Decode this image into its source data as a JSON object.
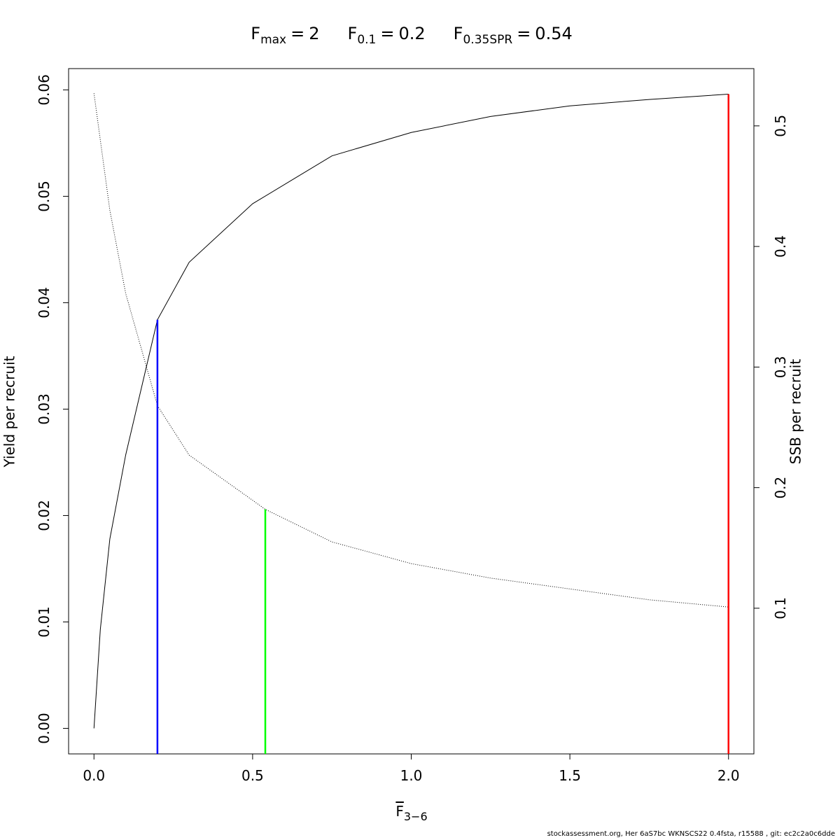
{
  "chart_data": {
    "type": "line",
    "title": [
      {
        "symbol": "F",
        "subscript": "max",
        "relation": "=",
        "value": 2
      },
      {
        "symbol": "F",
        "subscript": "0.1",
        "relation": "=",
        "value": 0.2
      },
      {
        "symbol": "F",
        "subscript": "0.35SPR",
        "relation": "=",
        "value": 0.54
      }
    ],
    "x_label": {
      "symbol": "F",
      "subscript": "3−6"
    },
    "y_label": "Yield per recruit",
    "y2_label": "SSB per recruit",
    "xlim": [
      -0.08,
      2.08
    ],
    "xticks": [
      {
        "value": 0,
        "label": "0.0"
      },
      0.5,
      {
        "value": 1,
        "label": "1.0"
      },
      1.5,
      {
        "value": 2,
        "label": "2.0"
      }
    ],
    "ylim": [
      -0.0024,
      0.062
    ],
    "yticks": [
      {
        "value": 0,
        "label": "0.00"
      },
      0.01,
      0.02,
      0.03,
      0.04,
      0.05,
      0.06
    ],
    "y2lim": [
      -0.0208,
      0.5475
    ],
    "y2ticks": [
      0.1,
      0.2,
      0.3,
      0.4,
      0.5
    ],
    "series": [
      {
        "name": "Yield per recruit",
        "color": "#000000",
        "style": "solid",
        "x": [
          0,
          0.02,
          0.05,
          0.1,
          0.2,
          0.3,
          0.5,
          0.75,
          1.0,
          1.25,
          1.5,
          1.75,
          2.0
        ],
        "values": [
          0,
          0.0093,
          0.0178,
          0.0257,
          0.0384,
          0.0438,
          0.0493,
          0.0538,
          0.056,
          0.0575,
          0.0585,
          0.0591,
          0.0596
        ]
      },
      {
        "name": "SSB per recruit",
        "color": "#000000",
        "style": "dotted",
        "axis": "y2",
        "x": [
          0,
          0.05,
          0.1,
          0.2,
          0.3,
          0.54,
          0.75,
          1.0,
          1.25,
          1.5,
          1.75,
          2.0
        ],
        "values": [
          0.527,
          0.43,
          0.361,
          0.268,
          0.227,
          0.182,
          0.155,
          0.137,
          0.125,
          0.116,
          0.107,
          0.101
        ]
      }
    ],
    "reference_lines": [
      {
        "x": 0.2,
        "top": 0.0384,
        "axis": "y",
        "color": "#0000ff"
      },
      {
        "x": 0.54,
        "top": 0.182,
        "axis": "y2",
        "color": "#00ff00"
      },
      {
        "x": 2.0,
        "top": 0.0596,
        "axis": "y",
        "color": "#ff0000"
      }
    ],
    "footer": "stockassessment.org, Her  6aS7bc  WKNSCS22  0.4fsta, r15588 , git: ec2c2a0c6dde"
  }
}
